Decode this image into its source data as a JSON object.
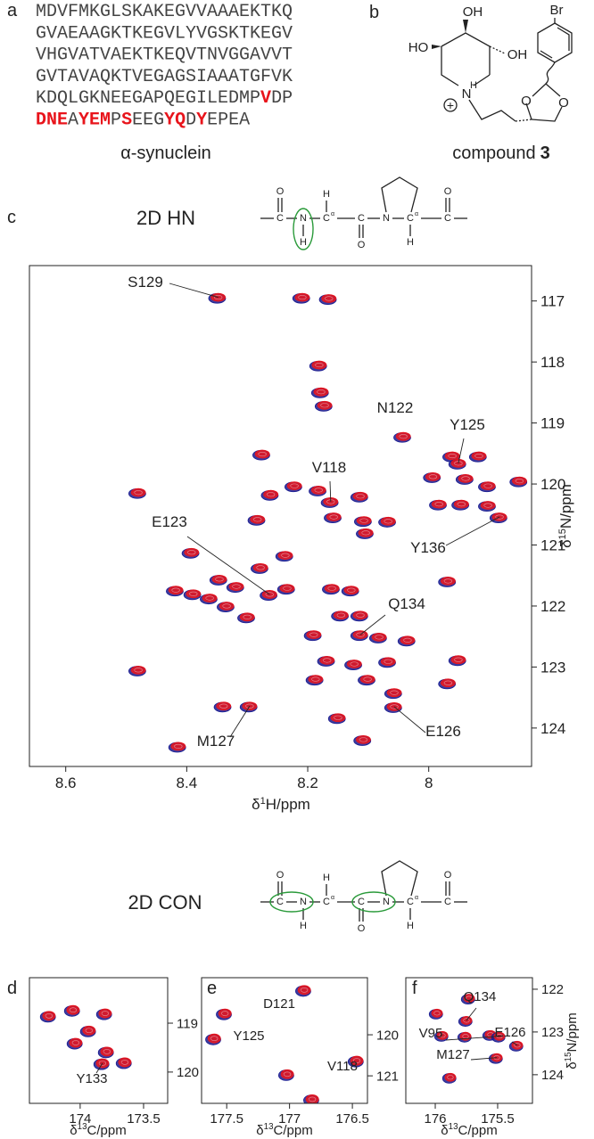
{
  "panel_a": {
    "letter": "a",
    "sequence": [
      [
        {
          "text": "MDVFMKGLSKAKEGVVAAAEKTKQ",
          "highlight": false
        }
      ],
      [
        {
          "text": "GVAEAAGKTKEGVLYVGSKTKEGV",
          "highlight": false
        }
      ],
      [
        {
          "text": "VHGVATVAEKTKEQVTNVGGAVVT",
          "highlight": false
        }
      ],
      [
        {
          "text": "GVTAVAQKTVEGAGSIAAATGFVK",
          "highlight": false
        }
      ],
      [
        {
          "text": "KDQLGKNEEGAPQEGILEDMP",
          "highlight": false
        },
        {
          "text": "V",
          "highlight": true
        },
        {
          "text": "DP",
          "highlight": false
        }
      ],
      [
        {
          "text": "DNE",
          "highlight": true
        },
        {
          "text": "A",
          "highlight": false
        },
        {
          "text": "YEM",
          "highlight": true
        },
        {
          "text": "P",
          "highlight": false
        },
        {
          "text": "S",
          "highlight": true
        },
        {
          "text": "EEG",
          "highlight": false
        },
        {
          "text": "YQ",
          "highlight": true
        },
        {
          "text": "D",
          "highlight": false
        },
        {
          "text": "Y",
          "highlight": true
        },
        {
          "text": "EPEA",
          "highlight": false
        }
      ]
    ],
    "highlight_color": "#e8141b",
    "caption": "α-synuclein"
  },
  "panel_b": {
    "letter": "b",
    "atoms": {
      "br": "Br",
      "oh_top": "OH",
      "ho": "HO",
      "oh_right": "OH",
      "n": "N",
      "h": "H",
      "plus": "+",
      "o": "O"
    },
    "caption": "compound",
    "compound_number": "3"
  },
  "scheme": {
    "C": "C",
    "N": "N",
    "H": "H",
    "O": "O",
    "alpha": "α",
    "ring_color": "#2a9a3a"
  },
  "hn_title": "2D HN",
  "con_title": "2D CON",
  "chart_data": [
    {
      "type": "scatter",
      "letter": "c",
      "colors": [
        "#1b1b8f",
        "#e8141b"
      ],
      "x": [
        8.348,
        8.209,
        8.165,
        8.181,
        8.178,
        8.172,
        8.042,
        8.275,
        7.961,
        7.917,
        7.993,
        7.939,
        7.902,
        7.85,
        8.48,
        8.222,
        8.182,
        8.261,
        8.113,
        8.162,
        8.283,
        8.157,
        8.107,
        8.067,
        7.983,
        7.946,
        7.902,
        7.883,
        8.104,
        8.392,
        8.237,
        8.278,
        8.346,
        8.318,
        8.418,
        8.389,
        8.362,
        8.334,
        8.3,
        8.263,
        8.234,
        8.16,
        8.128,
        7.968,
        8.145,
        8.113,
        8.113,
        8.19,
        8.082,
        8.035,
        8.123,
        8.168,
        8.187,
        8.101,
        8.067,
        7.951,
        8.48,
        7.968,
        8.057,
        8.057,
        8.296,
        8.339,
        8.15,
        8.414,
        8.108,
        7.951
      ],
      "values": [
        116.94,
        116.94,
        116.96,
        118.05,
        118.49,
        118.71,
        119.22,
        119.51,
        119.54,
        119.54,
        119.88,
        119.91,
        120.03,
        119.95,
        120.14,
        120.03,
        120.1,
        120.17,
        120.2,
        120.29,
        120.58,
        120.54,
        120.6,
        120.61,
        120.33,
        120.33,
        120.35,
        120.54,
        120.8,
        121.12,
        121.17,
        121.37,
        121.56,
        121.68,
        121.74,
        121.8,
        121.87,
        122.0,
        122.18,
        121.81,
        121.71,
        121.71,
        121.74,
        121.59,
        122.15,
        122.15,
        122.47,
        122.47,
        122.51,
        122.56,
        122.95,
        122.89,
        123.2,
        123.2,
        122.91,
        122.88,
        123.05,
        123.26,
        123.42,
        123.65,
        123.64,
        123.64,
        123.83,
        124.3,
        124.19,
        119.66
      ],
      "xlim": [
        8.66,
        7.83
      ],
      "xticks": [
        8.6,
        8.4,
        8.2,
        8.0
      ],
      "ylim": [
        116.42,
        124.63
      ],
      "yticks": [
        117,
        118,
        119,
        120,
        121,
        122,
        123,
        124
      ],
      "xlabel": {
        "delta": "δ",
        "sup": "1",
        "unit": "H/ppm"
      },
      "ylabel": {
        "delta": "δ",
        "sup": "15",
        "unit": "N/ppm"
      },
      "annotations": [
        {
          "text": "S129",
          "x": 8.348,
          "y": 116.94
        },
        {
          "text": "N122",
          "x": 8.042,
          "y": 119.22
        },
        {
          "text": "Y125",
          "x": 7.951,
          "y": 119.66
        },
        {
          "text": "V118",
          "x": 8.162,
          "y": 120.29
        },
        {
          "text": "E123",
          "x": 8.263,
          "y": 121.81
        },
        {
          "text": "Y136",
          "x": 7.883,
          "y": 120.54
        },
        {
          "text": "Q134",
          "x": 8.113,
          "y": 122.47
        },
        {
          "text": "E126",
          "x": 8.057,
          "y": 123.65
        },
        {
          "text": "M127",
          "x": 8.296,
          "y": 123.64
        }
      ]
    },
    {
      "type": "scatter",
      "letter": "d",
      "colors": [
        "#1b1b8f",
        "#e8141b"
      ],
      "x": [
        174.246,
        174.056,
        173.803,
        173.93,
        174.035,
        173.789,
        173.824,
        173.648
      ],
      "values": [
        118.85,
        118.73,
        118.8,
        119.15,
        119.4,
        119.58,
        119.82,
        119.8
      ],
      "xlim": [
        174.4,
        173.31
      ],
      "xticks": [
        174,
        173.5
      ],
      "ylim": [
        118.07,
        120.64
      ],
      "yticks": [
        119,
        120
      ],
      "xlabel": {
        "delta": "δ",
        "sup": "13",
        "unit": "C/ppm"
      },
      "annotations": [
        {
          "text": "Y133",
          "x": 173.824,
          "y": 119.82
        }
      ]
    },
    {
      "type": "scatter",
      "letter": "e",
      "colors": [
        "#1b1b8f",
        "#e8141b"
      ],
      "x": [
        176.883,
        177.514,
        177.599,
        176.465,
        177.018,
        176.819
      ],
      "values": [
        118.91,
        119.48,
        120.09,
        120.63,
        120.96,
        121.57
      ],
      "xlim": [
        177.7,
        176.38
      ],
      "xticks": [
        177.5,
        177,
        176.5
      ],
      "ylim": [
        118.61,
        121.67
      ],
      "yticks": [
        120,
        121
      ],
      "xlabel": {
        "delta": "δ",
        "sup": "13",
        "unit": "C/ppm"
      },
      "annotations": [
        {
          "text": "D121",
          "x": 176.883,
          "y": 118.91
        },
        {
          "text": "Y125",
          "x": 177.514,
          "y": 119.48
        },
        {
          "text": "V118",
          "x": 176.465,
          "y": 120.63
        }
      ]
    },
    {
      "type": "scatter",
      "letter": "f",
      "colors": [
        "#1b1b8f",
        "#e8141b"
      ],
      "x": [
        175.729,
        175.986,
        175.75,
        175.557,
        175.943,
        175.757,
        175.486,
        175.343,
        175.507,
        175.879
      ],
      "values": [
        122.21,
        122.56,
        122.73,
        123.06,
        123.08,
        123.1,
        123.1,
        123.31,
        123.6,
        124.06
      ],
      "xlim": [
        176.236,
        175.221
      ],
      "xticks": [
        176,
        175.5
      ],
      "ylim": [
        121.73,
        124.67
      ],
      "yticks": [
        122,
        123,
        124
      ],
      "xlabel": {
        "delta": "δ",
        "sup": "13",
        "unit": "C/ppm"
      },
      "ylabel": {
        "delta": "δ",
        "sup": "15",
        "unit": "N/ppm"
      },
      "annotations": [
        {
          "text": "Q134",
          "x": 175.75,
          "y": 122.73
        },
        {
          "text": "V95",
          "x": 175.486,
          "y": 123.1
        },
        {
          "text": "E126",
          "x": 175.343,
          "y": 123.31
        },
        {
          "text": "M127",
          "x": 175.507,
          "y": 123.6
        }
      ]
    }
  ]
}
